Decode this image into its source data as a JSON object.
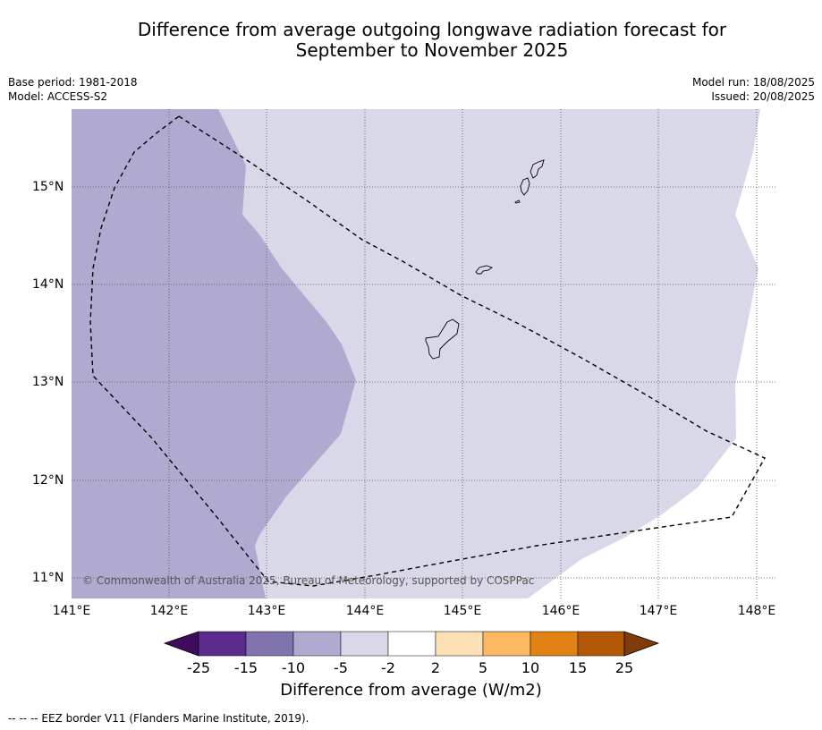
{
  "title_line1": "Difference from average outgoing longwave radiation forecast for",
  "title_line2": "September to November 2025",
  "meta": {
    "base_period": "Base period: 1981-2018",
    "model": "Model: ACCESS-S2",
    "model_run": "Model run: 18/08/2025",
    "issued": "Issued: 20/08/2025"
  },
  "map": {
    "longitudes": [
      "141°E",
      "142°E",
      "143°E",
      "144°E",
      "145°E",
      "146°E",
      "147°E",
      "148°E"
    ],
    "latitudes": [
      "15°N",
      "14°N",
      "13°N",
      "12°N",
      "11°N"
    ],
    "copyright": "© Commonwealth of Australia 2025, Bureau of Meteorology, supported by COSPPac",
    "region_colors": {
      "range_-10_to_-5": "#b0aad0",
      "range_-5_to_-2": "#d8d8e8",
      "range_-2_to_2": "#ffffff"
    }
  },
  "colorbar": {
    "title": "Difference from average (W/m2)",
    "ticks": [
      "-25",
      "-15",
      "-10",
      "-5",
      "-2",
      "2",
      "5",
      "10",
      "15",
      "25"
    ],
    "colors": [
      "#3f0b5c",
      "#5b2a8c",
      "#8073ae",
      "#b0aad0",
      "#d8d8e8",
      "#ffffff",
      "#fde0b5",
      "#fbb762",
      "#e08214",
      "#b25806",
      "#7f3b08"
    ]
  },
  "footer": "--  --  -- EEZ border V11 (Flanders Marine Institute, 2019)."
}
